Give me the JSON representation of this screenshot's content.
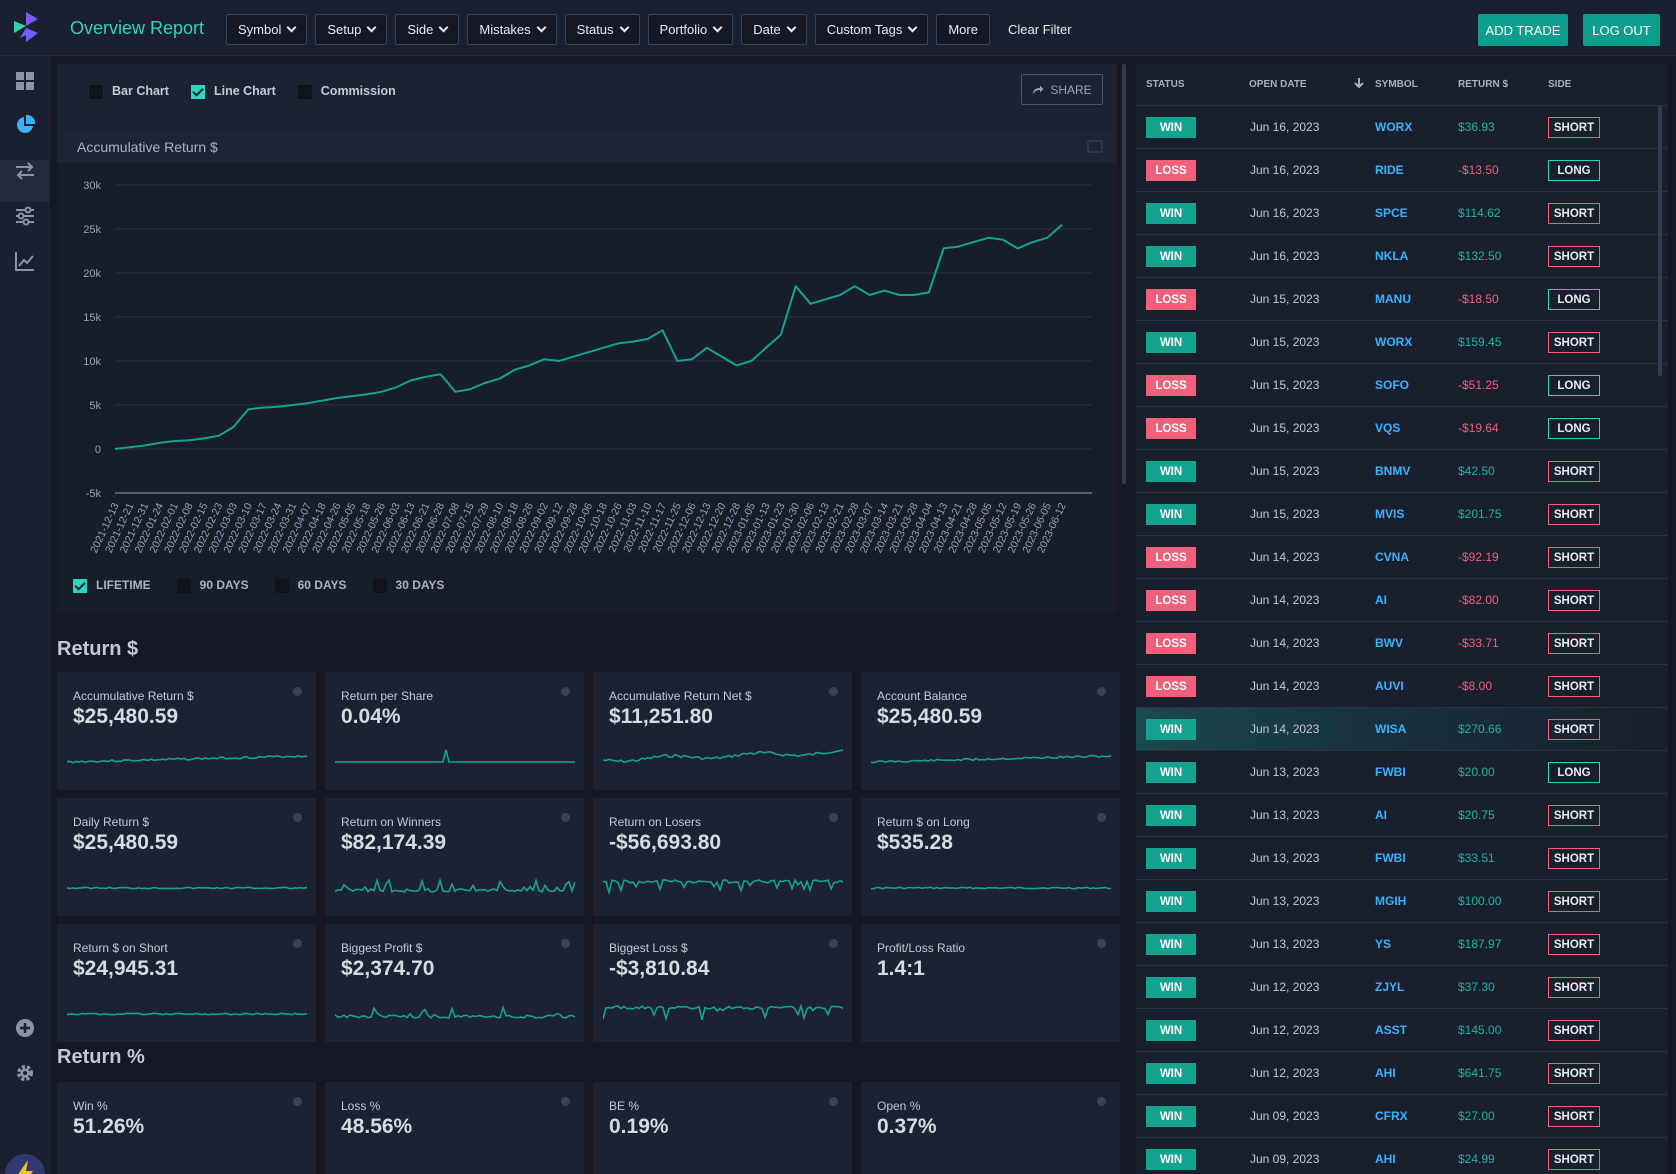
{
  "header": {
    "title": "Overview Report",
    "filters": [
      "Symbol",
      "Setup",
      "Side",
      "Mistakes",
      "Status",
      "Portfolio",
      "Date",
      "Custom Tags"
    ],
    "more_label": "More",
    "clear_label": "Clear Filter",
    "add_trade_label": "ADD TRADE",
    "logout_label": "LOG OUT"
  },
  "chart_options": {
    "bar_chart": "Bar Chart",
    "line_chart": "Line Chart",
    "commission": "Commission",
    "share": "SHARE",
    "ranges": [
      "LIFETIME",
      "90 DAYS",
      "60 DAYS",
      "30 DAYS"
    ]
  },
  "chart_data": {
    "type": "line",
    "title": "Accumulative Return $",
    "ylim": [
      -5000,
      30000
    ],
    "yticks": [
      "30k",
      "25k",
      "20k",
      "15k",
      "10k",
      "5k",
      "0",
      "-5k"
    ],
    "x_labels": [
      "2021-12-13",
      "2021-12-21",
      "2021-12-31",
      "2022-01-24",
      "2022-02-01",
      "2022-02-08",
      "2022-02-15",
      "2022-02-23",
      "2022-03-03",
      "2022-03-10",
      "2022-03-17",
      "2022-03-24",
      "2022-03-31",
      "2022-04-07",
      "2022-04-18",
      "2022-04-26",
      "2022-05-05",
      "2022-05-18",
      "2022-05-26",
      "2022-06-03",
      "2022-06-13",
      "2022-06-21",
      "2022-06-28",
      "2022-07-08",
      "2022-07-15",
      "2022-07-29",
      "2022-08-10",
      "2022-08-18",
      "2022-08-26",
      "2022-09-02",
      "2022-09-12",
      "2022-09-28",
      "2022-10-06",
      "2022-10-18",
      "2022-10-26",
      "2022-11-03",
      "2022-11-10",
      "2022-11-17",
      "2022-11-25",
      "2022-12-06",
      "2022-12-13",
      "2022-12-20",
      "2022-12-28",
      "2023-01-05",
      "2023-01-13",
      "2023-01-23",
      "2023-01-30",
      "2023-02-06",
      "2023-02-13",
      "2023-02-21",
      "2023-02-28",
      "2023-03-07",
      "2023-03-14",
      "2023-03-21",
      "2023-03-28",
      "2023-04-04",
      "2023-04-13",
      "2023-04-21",
      "2023-04-28",
      "2023-05-05",
      "2023-05-12",
      "2023-05-19",
      "2023-05-26",
      "2023-06-05",
      "2023-06-12"
    ],
    "values": [
      0,
      200,
      400,
      700,
      900,
      1000,
      1200,
      1500,
      2500,
      4500,
      4700,
      4800,
      5000,
      5200,
      5500,
      5800,
      6000,
      6200,
      6500,
      7000,
      7800,
      8200,
      8500,
      6500,
      6800,
      7500,
      8000,
      9000,
      9500,
      10200,
      10000,
      10500,
      11000,
      11500,
      12000,
      12200,
      12500,
      13500,
      10000,
      10200,
      11500,
      10500,
      9500,
      10000,
      11500,
      13000,
      18500,
      16500,
      17000,
      17500,
      18500,
      17500,
      18000,
      17500,
      17500,
      17800,
      22800,
      23000,
      23500,
      24000,
      23800,
      22800,
      23500,
      24000,
      25480
    ]
  },
  "return_section": {
    "title": "Return $",
    "cards": [
      {
        "label": "Accumulative Return $",
        "value": "$25,480.59"
      },
      {
        "label": "Return per Share",
        "value": "0.04%"
      },
      {
        "label": "Accumulative Return Net $",
        "value": "$11,251.80"
      },
      {
        "label": "Account Balance",
        "value": "$25,480.59"
      },
      {
        "label": "Daily Return $",
        "value": "$25,480.59"
      },
      {
        "label": "Return on Winners",
        "value": "$82,174.39"
      },
      {
        "label": "Return on Losers",
        "value": "-$56,693.80"
      },
      {
        "label": "Return $ on Long",
        "value": "$535.28"
      },
      {
        "label": "Return $ on Short",
        "value": "$24,945.31"
      },
      {
        "label": "Biggest Profit $",
        "value": "$2,374.70"
      },
      {
        "label": "Biggest Loss $",
        "value": "-$3,810.84"
      },
      {
        "label": "Profit/Loss Ratio",
        "value": "1.4:1"
      }
    ]
  },
  "percent_section": {
    "title": "Return %",
    "cards": [
      {
        "label": "Win %",
        "value": "51.26%"
      },
      {
        "label": "Loss %",
        "value": "48.56%"
      },
      {
        "label": "BE %",
        "value": "0.19%"
      },
      {
        "label": "Open %",
        "value": "0.37%"
      }
    ]
  },
  "trades": {
    "columns": [
      "STATUS",
      "OPEN DATE",
      "SYMBOL",
      "RETURN $",
      "SIDE"
    ],
    "rows": [
      {
        "status": "WIN",
        "date": "Jun 16, 2023",
        "symbol": "WORX",
        "ret": "$36.93",
        "side": "SHORT"
      },
      {
        "status": "LOSS",
        "date": "Jun 16, 2023",
        "symbol": "RIDE",
        "ret": "-$13.50",
        "side": "LONG"
      },
      {
        "status": "WIN",
        "date": "Jun 16, 2023",
        "symbol": "SPCE",
        "ret": "$114.62",
        "side": "SHORT"
      },
      {
        "status": "WIN",
        "date": "Jun 16, 2023",
        "symbol": "NKLA",
        "ret": "$132.50",
        "side": "SHORT"
      },
      {
        "status": "LOSS",
        "date": "Jun 15, 2023",
        "symbol": "MANU",
        "ret": "-$18.50",
        "side": "LONG"
      },
      {
        "status": "WIN",
        "date": "Jun 15, 2023",
        "symbol": "WORX",
        "ret": "$159.45",
        "side": "SHORT"
      },
      {
        "status": "LOSS",
        "date": "Jun 15, 2023",
        "symbol": "SOFO",
        "ret": "-$51.25",
        "side": "LONG"
      },
      {
        "status": "LOSS",
        "date": "Jun 15, 2023",
        "symbol": "VQS",
        "ret": "-$19.64",
        "side": "LONG"
      },
      {
        "status": "WIN",
        "date": "Jun 15, 2023",
        "symbol": "BNMV",
        "ret": "$42.50",
        "side": "SHORT"
      },
      {
        "status": "WIN",
        "date": "Jun 15, 2023",
        "symbol": "MVIS",
        "ret": "$201.75",
        "side": "SHORT"
      },
      {
        "status": "LOSS",
        "date": "Jun 14, 2023",
        "symbol": "CVNA",
        "ret": "-$92.19",
        "side": "SHORT"
      },
      {
        "status": "LOSS",
        "date": "Jun 14, 2023",
        "symbol": "AI",
        "ret": "-$82.00",
        "side": "SHORT"
      },
      {
        "status": "LOSS",
        "date": "Jun 14, 2023",
        "symbol": "BWV",
        "ret": "-$33.71",
        "side": "SHORT"
      },
      {
        "status": "LOSS",
        "date": "Jun 14, 2023",
        "symbol": "AUVI",
        "ret": "-$8.00",
        "side": "SHORT"
      },
      {
        "status": "WIN",
        "date": "Jun 14, 2023",
        "symbol": "WISA",
        "ret": "$270.66",
        "side": "SHORT",
        "highlight": true
      },
      {
        "status": "WIN",
        "date": "Jun 13, 2023",
        "symbol": "FWBI",
        "ret": "$20.00",
        "side": "LONG"
      },
      {
        "status": "WIN",
        "date": "Jun 13, 2023",
        "symbol": "AI",
        "ret": "$20.75",
        "side": "SHORT"
      },
      {
        "status": "WIN",
        "date": "Jun 13, 2023",
        "symbol": "FWBI",
        "ret": "$33.51",
        "side": "SHORT"
      },
      {
        "status": "WIN",
        "date": "Jun 13, 2023",
        "symbol": "MGIH",
        "ret": "$100.00",
        "side": "SHORT"
      },
      {
        "status": "WIN",
        "date": "Jun 13, 2023",
        "symbol": "YS",
        "ret": "$187.97",
        "side": "SHORT"
      },
      {
        "status": "WIN",
        "date": "Jun 12, 2023",
        "symbol": "ZJYL",
        "ret": "$37.30",
        "side": "SHORT"
      },
      {
        "status": "WIN",
        "date": "Jun 12, 2023",
        "symbol": "ASST",
        "ret": "$145.00",
        "side": "SHORT"
      },
      {
        "status": "WIN",
        "date": "Jun 12, 2023",
        "symbol": "AHI",
        "ret": "$641.75",
        "side": "SHORT"
      },
      {
        "status": "WIN",
        "date": "Jun 09, 2023",
        "symbol": "CFRX",
        "ret": "$27.00",
        "side": "SHORT"
      },
      {
        "status": "WIN",
        "date": "Jun 09, 2023",
        "symbol": "AHI",
        "ret": "$24.99",
        "side": "SHORT"
      }
    ]
  },
  "colors": {
    "accent": "#2dd4bf",
    "win": "#14a38f",
    "loss": "#f0607a",
    "link": "#3ab2ff"
  },
  "icons": [
    "dashboard-icon",
    "pie-chart-icon",
    "transfer-icon",
    "sliders-icon",
    "line-chart-icon",
    "add-circle-icon",
    "gear-icon",
    "bolt-icon"
  ]
}
